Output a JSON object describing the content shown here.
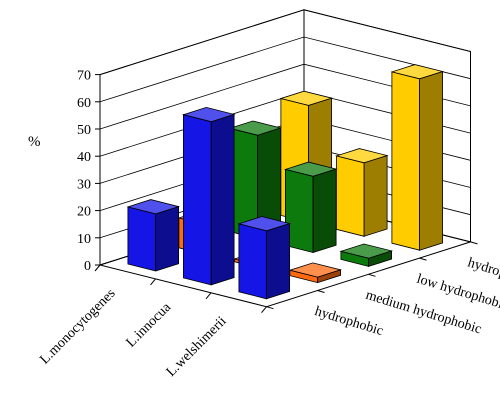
{
  "chart_data": {
    "type": "bar",
    "subtype": "3d-bar",
    "ylabel": "%",
    "ylim": [
      0,
      70
    ],
    "yticks": [
      "0",
      "10",
      "20",
      "30",
      "40",
      "50",
      "60",
      "70"
    ],
    "categories": [
      "L.monocytogenes",
      "L.innocua",
      "L.welshimerii"
    ],
    "series": [
      {
        "name": "hydrophobic",
        "color": "#1515e6",
        "values": [
          21,
          60,
          25
        ]
      },
      {
        "name": "medium hydrophobic",
        "color": "#ff6a10",
        "values": [
          11,
          1,
          2
        ]
      },
      {
        "name": "low hydrophobic",
        "color": "#0d7a0d",
        "values": [
          38,
          28,
          3
        ]
      },
      {
        "name": "hydrophilic",
        "color": "#ffcc00",
        "values": [
          43,
          27,
          63
        ]
      }
    ],
    "grid": true,
    "legend": "none"
  }
}
